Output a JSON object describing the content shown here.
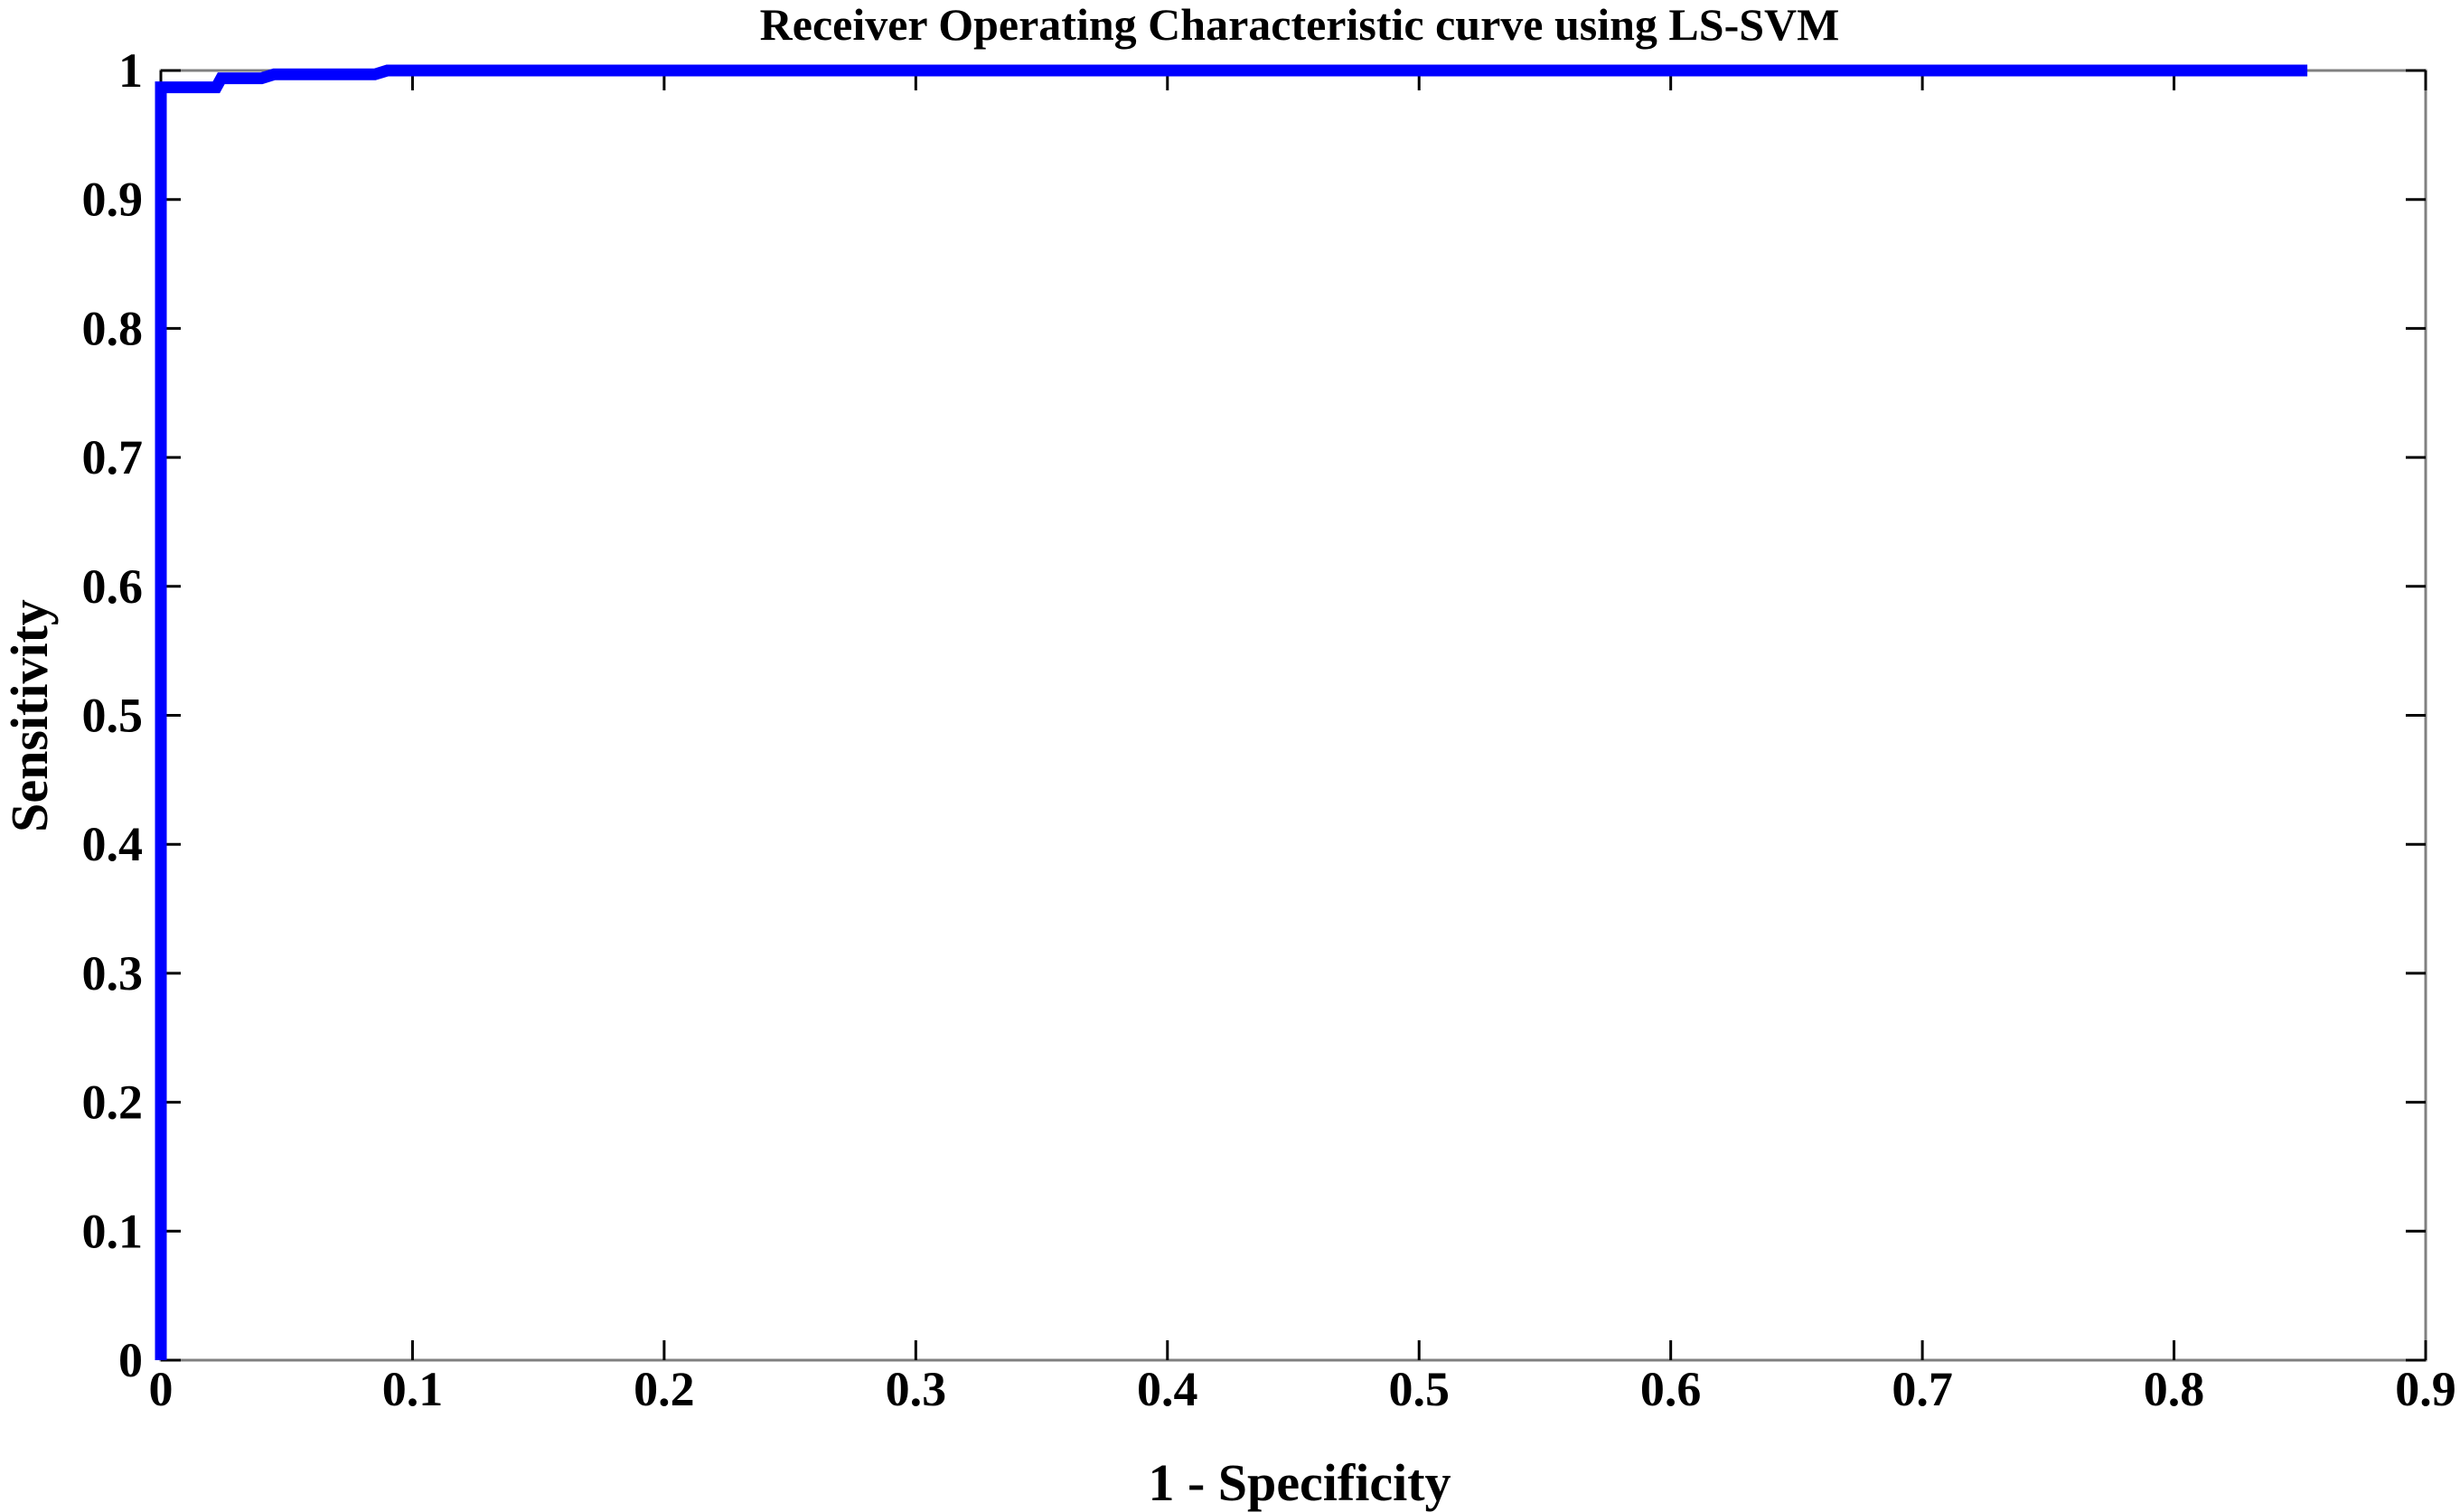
{
  "chart_data": {
    "type": "line",
    "title": "Receiver Operating Characteristic curve using LS-SVM",
    "xlabel": "1 - Specificity",
    "ylabel": "Sensitivity",
    "xlim": [
      0,
      0.9
    ],
    "ylim": [
      0,
      1
    ],
    "xticks": [
      "0",
      "0.1",
      "0.2",
      "0.3",
      "0.4",
      "0.5",
      "0.6",
      "0.7",
      "0.8",
      "0.9"
    ],
    "yticks": [
      "0",
      "0.1",
      "0.2",
      "0.3",
      "0.4",
      "0.5",
      "0.6",
      "0.7",
      "0.8",
      "0.9",
      "1"
    ],
    "grid": false,
    "series": [
      {
        "color": "#0000ff",
        "x": [
          0,
          0,
          0.022,
          0.024,
          0.04,
          0.045,
          0.085,
          0.09,
          0.853
        ],
        "y": [
          0,
          0.987,
          0.987,
          0.994,
          0.994,
          0.997,
          0.997,
          1.0,
          1.0
        ]
      }
    ]
  }
}
